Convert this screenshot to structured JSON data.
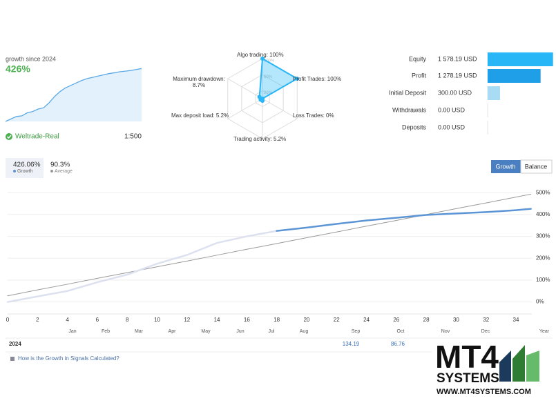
{
  "account": {
    "growth_label": "growth since 2024",
    "growth": "426%",
    "name": "Weltrade-Real",
    "leverage": "1:500"
  },
  "tabs": {
    "growth_value": "426.06%",
    "growth_label": "Growth",
    "average_value": "90.3%",
    "average_label": "Average"
  },
  "buttons": [
    "Growth",
    "Balance"
  ],
  "table": {
    "year": "2024",
    "cells": [
      134.19,
      86.76
    ]
  },
  "link": "How is the Growth in Signals Calculated?",
  "logo": {
    "brand": "MT4",
    "sub": "SYSTEMS",
    "url": "WWW.MT4SYSTEMS.COM"
  },
  "chart_data": [
    {
      "type": "area",
      "color": "#5aa9e6",
      "ylim": [
        0,
        450
      ],
      "values": [
        0,
        20,
        40,
        45,
        70,
        80,
        100,
        110,
        150,
        200,
        240,
        270,
        290,
        310,
        330,
        345,
        355,
        365,
        375,
        385,
        392,
        400,
        405,
        410,
        418,
        426
      ]
    },
    {
      "type": "radar",
      "color": "#29b6f6",
      "categories": [
        "Algo trading: 100%",
        "Profit Trades: 100%",
        "Loss Trades: 0%",
        "Trading activity: 5.2%",
        "Max deposit load: 5.2%",
        "Maximum drawdown: 8.7%"
      ],
      "values": [
        100,
        100,
        0,
        5.2,
        5.2,
        8.7
      ],
      "rlim": [
        0,
        100
      ],
      "rticks": [
        {
          "value": 20,
          "label": "20%"
        },
        {
          "value": 60,
          "label": "60%"
        },
        {
          "value": 100,
          "label": "100%"
        }
      ]
    },
    {
      "type": "hbar",
      "categories": [
        "Equity",
        "Profit",
        "Initial Deposit",
        "Withdrawals",
        "Deposits"
      ],
      "values": [
        1578.19,
        1278.19,
        300,
        0,
        0
      ],
      "value_labels": [
        "1 578.19 USD",
        "1 278.19 USD",
        "300.00 USD",
        "0.00 USD",
        "0.00 USD"
      ],
      "colors": [
        "#29b6f6",
        "#1e9fe8",
        "#a8dcf4",
        "#29b6f6",
        "#29b6f6"
      ],
      "xlim": [
        0,
        1600
      ]
    },
    {
      "type": "line",
      "grid": true,
      "x": [
        0,
        2,
        4,
        6,
        8,
        10,
        12,
        14,
        16,
        18,
        20,
        22,
        24,
        26,
        28,
        30,
        32,
        34,
        35
      ],
      "series": [
        {
          "color": "#dde1ef",
          "values": [
            0,
            25,
            50,
            90,
            125,
            175,
            215,
            270,
            300,
            325,
            null,
            null,
            null,
            null,
            null,
            null,
            null,
            null,
            null
          ]
        },
        {
          "color": "#5b95d6",
          "values": [
            null,
            null,
            null,
            null,
            null,
            null,
            null,
            null,
            null,
            325,
            340,
            357,
            373,
            385,
            398,
            405,
            411,
            420,
            426
          ]
        },
        {
          "color": "#9a9a9a",
          "values": [
            28,
            55,
            81,
            108,
            134,
            161,
            187,
            214,
            241,
            267,
            294,
            320,
            347,
            373,
            400,
            427,
            453,
            480,
            493
          ]
        }
      ],
      "xlim": [
        0,
        35.5
      ],
      "xticks": [
        0,
        2,
        4,
        6,
        8,
        10,
        12,
        14,
        16,
        18,
        20,
        22,
        24,
        26,
        28,
        30,
        32,
        34
      ],
      "ylim": [
        -55,
        545
      ],
      "yticks": [
        {
          "value": 0,
          "label": "0%"
        },
        {
          "value": 100,
          "label": "100%"
        },
        {
          "value": 200,
          "label": "200%"
        },
        {
          "value": 300,
          "label": "300%"
        },
        {
          "value": 400,
          "label": "400%"
        },
        {
          "value": 500,
          "label": "500%"
        }
      ],
      "months": [
        "Jan",
        "Feb",
        "Mar",
        "Apr",
        "May",
        "Jun",
        "Jul",
        "Aug",
        "Sep",
        "Oct",
        "Nov",
        "Dec",
        "Year"
      ]
    }
  ]
}
